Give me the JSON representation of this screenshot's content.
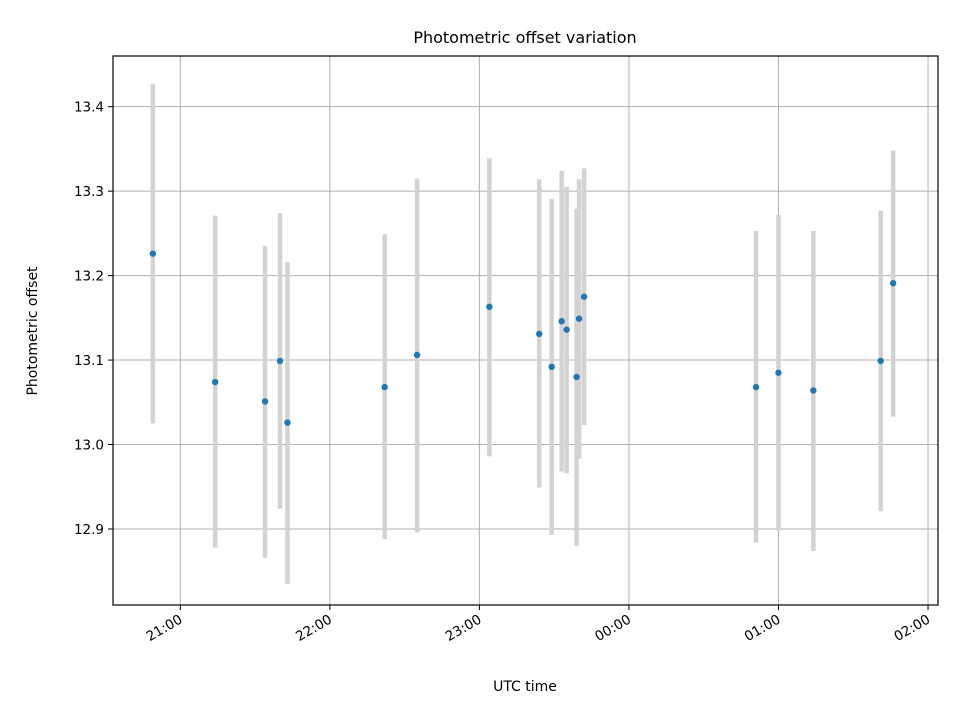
{
  "chart_data": {
    "type": "scatter",
    "title": "Photometric offset variation",
    "xlabel": "UTC time",
    "ylabel": "Photometric offset",
    "x_unit": "UTC time (hours, wrapping past midnight)",
    "xlim": [
      "20:33",
      "02:04"
    ],
    "ylim": [
      12.81,
      13.46
    ],
    "grid": true,
    "x_ticks": [
      {
        "value": "21:00",
        "label": "21:00"
      },
      {
        "value": "22:00",
        "label": "22:00"
      },
      {
        "value": "23:00",
        "label": "23:00"
      },
      {
        "value": "00:00",
        "label": "00:00"
      },
      {
        "value": "01:00",
        "label": "01:00"
      },
      {
        "value": "02:00",
        "label": "02:00"
      }
    ],
    "y_ticks": [
      12.9,
      13.0,
      13.1,
      13.2,
      13.3,
      13.4
    ],
    "series": [
      {
        "marker_color": "#1f77b4",
        "errorbar_color": "#d3d3d3",
        "points": [
          {
            "x": "20:49",
            "y": 13.226,
            "low": 13.025,
            "high": 13.427
          },
          {
            "x": "21:14",
            "y": 13.074,
            "low": 12.878,
            "high": 13.271
          },
          {
            "x": "21:34",
            "y": 13.051,
            "low": 12.866,
            "high": 13.235
          },
          {
            "x": "21:43",
            "y": 13.026,
            "low": 12.835,
            "high": 13.216
          },
          {
            "x": "21:40",
            "y": 13.099,
            "low": 12.924,
            "high": 13.274
          },
          {
            "x": "22:22",
            "y": 13.068,
            "low": 12.888,
            "high": 13.249
          },
          {
            "x": "22:35",
            "y": 13.106,
            "low": 12.896,
            "high": 13.315
          },
          {
            "x": "23:24",
            "y": 13.131,
            "low": 12.949,
            "high": 13.314
          },
          {
            "x": "23:29",
            "y": 13.092,
            "low": 12.893,
            "high": 13.291
          },
          {
            "x": "23:33",
            "y": 13.146,
            "low": 12.968,
            "high": 13.324
          },
          {
            "x": "23:35",
            "y": 13.136,
            "low": 12.966,
            "high": 13.305
          },
          {
            "x": "23:40",
            "y": 13.149,
            "low": 12.983,
            "high": 13.314
          },
          {
            "x": "23:42",
            "y": 13.175,
            "low": 13.023,
            "high": 13.327
          },
          {
            "x": "23:04",
            "y": 13.163,
            "low": 12.986,
            "high": 13.339
          },
          {
            "x": "23:39",
            "y": 13.08,
            "low": 12.88,
            "high": 13.279
          },
          {
            "x": "00:51",
            "y": 13.068,
            "low": 12.884,
            "high": 13.253
          },
          {
            "x": "01:00",
            "y": 13.085,
            "low": 12.898,
            "high": 13.272
          },
          {
            "x": "01:14",
            "y": 13.064,
            "low": 12.874,
            "high": 13.253
          },
          {
            "x": "01:41",
            "y": 13.099,
            "low": 12.921,
            "high": 13.277
          },
          {
            "x": "01:46",
            "y": 13.191,
            "low": 13.033,
            "high": 13.348
          }
        ]
      }
    ]
  }
}
